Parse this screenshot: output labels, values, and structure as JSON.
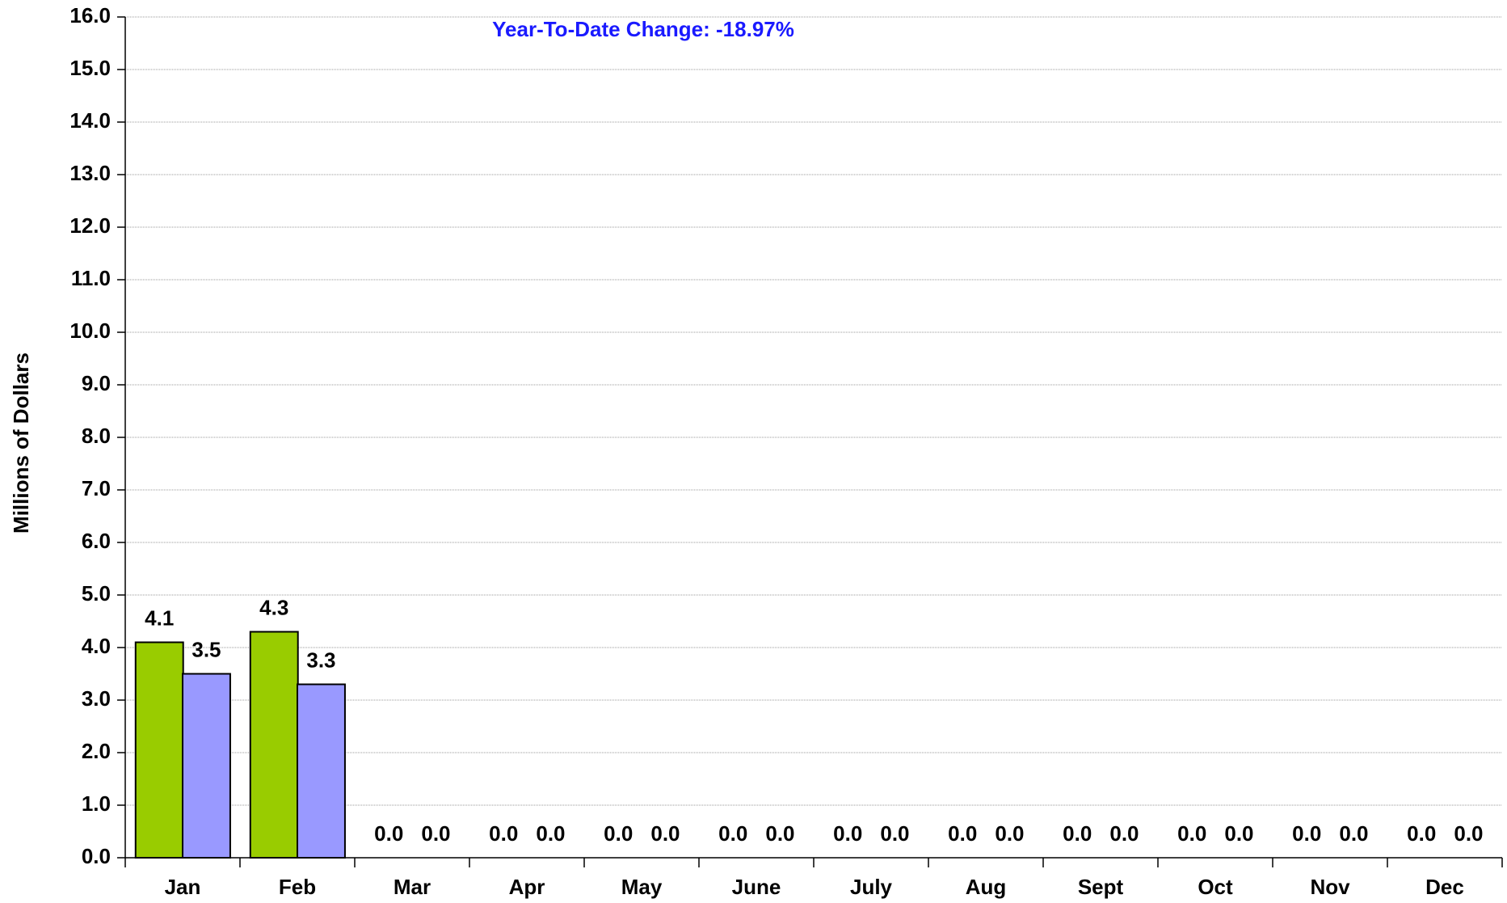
{
  "chart_data": {
    "type": "bar",
    "annotation": "Year-To-Date Change: -18.97%",
    "ylabel": "Millions of Dollars",
    "categories": [
      "Jan",
      "Feb",
      "Mar",
      "Apr",
      "May",
      "June",
      "July",
      "Aug",
      "Sept",
      "Oct",
      "Nov",
      "Dec"
    ],
    "series": [
      {
        "color": "#99cc00",
        "values": [
          4.1,
          4.3,
          0,
          0,
          0,
          0,
          0,
          0,
          0,
          0,
          0,
          0
        ],
        "value_labels": [
          "4.1",
          "4.3",
          "0.0",
          "0.0",
          "0.0",
          "0.0",
          "0.0",
          "0.0",
          "0.0",
          "0.0",
          "0.0",
          "0.0"
        ]
      },
      {
        "color": "#9999ff",
        "values": [
          3.5,
          3.3,
          0,
          0,
          0,
          0,
          0,
          0,
          0,
          0,
          0,
          0
        ],
        "value_labels": [
          "3.5",
          "3.3",
          "0.0",
          "0.0",
          "0.0",
          "0.0",
          "0.0",
          "0.0",
          "0.0",
          "0.0",
          "0.0",
          "0.0"
        ]
      }
    ],
    "ylim": [
      0,
      16
    ],
    "yticks": [
      {
        "value": 0,
        "label": "0.0"
      },
      {
        "value": 1,
        "label": "1.0"
      },
      {
        "value": 2,
        "label": "2.0"
      },
      {
        "value": 3,
        "label": "3.0"
      },
      {
        "value": 4,
        "label": "4.0"
      },
      {
        "value": 5,
        "label": "5.0"
      },
      {
        "value": 6,
        "label": "6.0"
      },
      {
        "value": 7,
        "label": "7.0"
      },
      {
        "value": 8,
        "label": "8.0"
      },
      {
        "value": 9,
        "label": "9.0"
      },
      {
        "value": 10,
        "label": "10.0"
      },
      {
        "value": 11,
        "label": "11.0"
      },
      {
        "value": 12,
        "label": "12.0"
      },
      {
        "value": 13,
        "label": "13.0"
      },
      {
        "value": 14,
        "label": "14.0"
      },
      {
        "value": 15,
        "label": "15.0"
      },
      {
        "value": 16,
        "label": "16.0"
      }
    ],
    "annotation_color": "#1a1aff",
    "grid": true
  }
}
